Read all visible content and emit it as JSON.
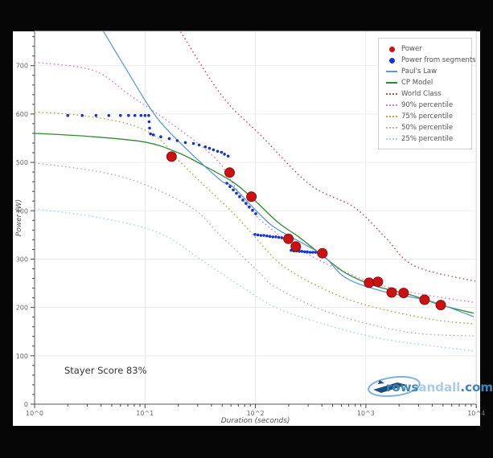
{
  "stayer_score": "Stayer Score 83%",
  "logo": {
    "part1": "rows",
    "part2": "andall",
    "part3": ".com"
  },
  "axes": {
    "x_label": "Duration (seconds)",
    "y_label": "Power (W)",
    "x_tick_labels": [
      "10^0",
      "10^1",
      "10^2",
      "10^3",
      "10^4"
    ],
    "x_log_min": 0,
    "x_log_max": 4,
    "y_ticks": [
      0,
      100,
      200,
      300,
      400,
      500,
      600,
      700
    ],
    "y_min": 0,
    "y_max": 771
  },
  "legend": {
    "items": [
      {
        "id": "power",
        "label": "Power",
        "type": "dot",
        "color": "#cc1111"
      },
      {
        "id": "segments",
        "label": "Power from segments",
        "type": "dot",
        "color": "#1535cc"
      },
      {
        "id": "pauls-law",
        "label": "Paul's Law",
        "type": "line",
        "color": "#5b9bd5"
      },
      {
        "id": "cp-model",
        "label": "CP Model",
        "type": "line",
        "color": "#2e8b2e"
      },
      {
        "id": "world-class",
        "label": "World Class",
        "type": "dotted",
        "color": "#bf4f4f"
      },
      {
        "id": "p90",
        "label": "90% percentile",
        "type": "dotted",
        "color": "#d678d6"
      },
      {
        "id": "p75",
        "label": "75% percentile",
        "type": "dotted",
        "color": "#b5a642"
      },
      {
        "id": "p50",
        "label": "50% percentile",
        "type": "dotted",
        "color": "#b3b3b3"
      },
      {
        "id": "p25",
        "label": "25% percentile",
        "type": "dotted",
        "color": "#a6d3ee"
      }
    ]
  },
  "chart_data": {
    "type": "scatter",
    "title": "",
    "xlabel": "Duration (seconds)",
    "ylabel": "Power (W)",
    "x_scale": "log",
    "xlim": [
      1,
      10000
    ],
    "ylim": [
      0,
      771
    ],
    "grid": true,
    "legend_position": "top-right",
    "series": [
      {
        "id": "world-class",
        "name": "World Class",
        "kind": "dotted-line",
        "color": "#bf4f4f",
        "points": [
          [
            21,
            770
          ],
          [
            50,
            637
          ],
          [
            114,
            554
          ],
          [
            312,
            454
          ],
          [
            786,
            407
          ],
          [
            1500,
            345
          ],
          [
            2750,
            286
          ],
          [
            9800,
            254
          ]
        ]
      },
      {
        "id": "p90",
        "name": "90% percentile",
        "kind": "dotted-line",
        "color": "#d678d6",
        "points": [
          [
            1,
            707
          ],
          [
            3.4,
            690
          ],
          [
            7.5,
            637
          ],
          [
            20,
            570
          ],
          [
            44,
            507
          ],
          [
            65,
            450
          ],
          [
            104,
            387
          ],
          [
            285,
            313
          ],
          [
            925,
            259
          ],
          [
            2500,
            232
          ],
          [
            9800,
            210
          ]
        ]
      },
      {
        "id": "p75",
        "name": "75% percentile",
        "kind": "dotted-line",
        "color": "#b5a642",
        "points": [
          [
            1,
            604
          ],
          [
            2,
            600
          ],
          [
            4.3,
            590
          ],
          [
            8.4,
            574
          ],
          [
            14,
            545
          ],
          [
            21,
            500
          ],
          [
            44,
            429
          ],
          [
            65,
            392
          ],
          [
            98,
            347
          ],
          [
            173,
            288
          ],
          [
            400,
            240
          ],
          [
            1000,
            205
          ],
          [
            3830,
            176
          ],
          [
            9500,
            166
          ]
        ]
      },
      {
        "id": "p50",
        "name": "50% percentile",
        "kind": "dotted-line",
        "color": "#b3b3b3",
        "points": [
          [
            1,
            499
          ],
          [
            4,
            480
          ],
          [
            10,
            454
          ],
          [
            27.5,
            404
          ],
          [
            45.5,
            354
          ],
          [
            63,
            324
          ],
          [
            110,
            271
          ],
          [
            150,
            243
          ],
          [
            400,
            195
          ],
          [
            1200,
            163
          ],
          [
            3000,
            146
          ],
          [
            9500,
            141
          ]
        ]
      },
      {
        "id": "p25",
        "name": "25% percentile",
        "kind": "dotted-line",
        "color": "#a6d3ee",
        "points": [
          [
            1,
            404
          ],
          [
            4,
            385
          ],
          [
            13.5,
            354
          ],
          [
            32,
            299
          ],
          [
            75,
            243
          ],
          [
            167,
            196
          ],
          [
            600,
            155
          ],
          [
            1500,
            134
          ],
          [
            3830,
            121
          ],
          [
            9500,
            110
          ]
        ]
      },
      {
        "id": "cp-model",
        "name": "CP Model",
        "kind": "line",
        "color": "#2e8b2e",
        "points": [
          [
            1,
            560
          ],
          [
            3,
            554
          ],
          [
            10,
            542
          ],
          [
            20,
            520
          ],
          [
            30,
            500
          ],
          [
            63,
            459
          ],
          [
            100,
            420
          ],
          [
            160,
            376
          ],
          [
            250,
            345
          ],
          [
            400,
            308
          ],
          [
            660,
            271
          ],
          [
            1200,
            245
          ],
          [
            2545,
            226
          ],
          [
            4770,
            205
          ],
          [
            9500,
            188
          ]
        ]
      },
      {
        "id": "pauls-law",
        "name": "Paul's Law",
        "kind": "line",
        "color": "#5b9bd5",
        "points": [
          [
            4.2,
            771
          ],
          [
            7,
            687
          ],
          [
            11.2,
            611
          ],
          [
            16,
            567
          ],
          [
            28,
            512
          ],
          [
            49,
            462
          ],
          [
            63,
            449
          ],
          [
            110,
            392
          ],
          [
            160,
            361
          ],
          [
            400,
            309
          ],
          [
            660,
            261
          ],
          [
            1500,
            232
          ],
          [
            3830,
            213
          ],
          [
            9500,
            181
          ]
        ]
      },
      {
        "id": "segments",
        "name": "Power from segments",
        "kind": "scatter-small",
        "color": "#1535cc",
        "points": [
          [
            2.0,
            597
          ],
          [
            2.7,
            597
          ],
          [
            3.6,
            597
          ],
          [
            4.7,
            597
          ],
          [
            6.0,
            597
          ],
          [
            7.1,
            597
          ],
          [
            8.1,
            597
          ],
          [
            9.2,
            597
          ],
          [
            10.0,
            597
          ],
          [
            10.8,
            597
          ],
          [
            10.9,
            584
          ],
          [
            11.0,
            571
          ],
          [
            11.2,
            559
          ],
          [
            11.9,
            557
          ],
          [
            13.9,
            553
          ],
          [
            16.6,
            549
          ],
          [
            19.6,
            545
          ],
          [
            23.2,
            541
          ],
          [
            27.5,
            539
          ],
          [
            30.9,
            536
          ],
          [
            35.2,
            532
          ],
          [
            38.3,
            529
          ],
          [
            41.7,
            526
          ],
          [
            45.5,
            523
          ],
          [
            49.3,
            521
          ],
          [
            52.4,
            517
          ],
          [
            56.6,
            513
          ],
          [
            55.1,
            457
          ],
          [
            58.9,
            450
          ],
          [
            63.0,
            443
          ],
          [
            67.3,
            436
          ],
          [
            71.9,
            429
          ],
          [
            77.0,
            422
          ],
          [
            82.2,
            415
          ],
          [
            87.9,
            408
          ],
          [
            94.2,
            401
          ],
          [
            100.7,
            394
          ],
          [
            99.0,
            351
          ],
          [
            105.3,
            350
          ],
          [
            112.1,
            349
          ],
          [
            119.3,
            349
          ],
          [
            127.0,
            348
          ],
          [
            135.2,
            347
          ],
          [
            143.9,
            346
          ],
          [
            153.2,
            346
          ],
          [
            163.0,
            345
          ],
          [
            173.5,
            344
          ],
          [
            184.6,
            343
          ],
          [
            196.4,
            343
          ],
          [
            210.4,
            318
          ],
          [
            222.8,
            317
          ],
          [
            235.5,
            317
          ],
          [
            249.5,
            316
          ],
          [
            263.7,
            316
          ],
          [
            279.2,
            315
          ],
          [
            295.1,
            315
          ],
          [
            312.6,
            314
          ],
          [
            330.4,
            314
          ],
          [
            349.9,
            314
          ],
          [
            369.8,
            313
          ],
          [
            391.6,
            313
          ]
        ]
      },
      {
        "id": "power",
        "name": "Power",
        "kind": "scatter-big",
        "color": "#cc1111",
        "points": [
          [
            17.4,
            512
          ],
          [
            58.4,
            479
          ],
          [
            92,
            429
          ],
          [
            199,
            342
          ],
          [
            232,
            326
          ],
          [
            404,
            312
          ],
          [
            1069,
            251
          ],
          [
            1286,
            253
          ],
          [
            1713,
            231
          ],
          [
            2200,
            230
          ],
          [
            3404,
            216
          ],
          [
            4766,
            205
          ]
        ]
      }
    ]
  }
}
